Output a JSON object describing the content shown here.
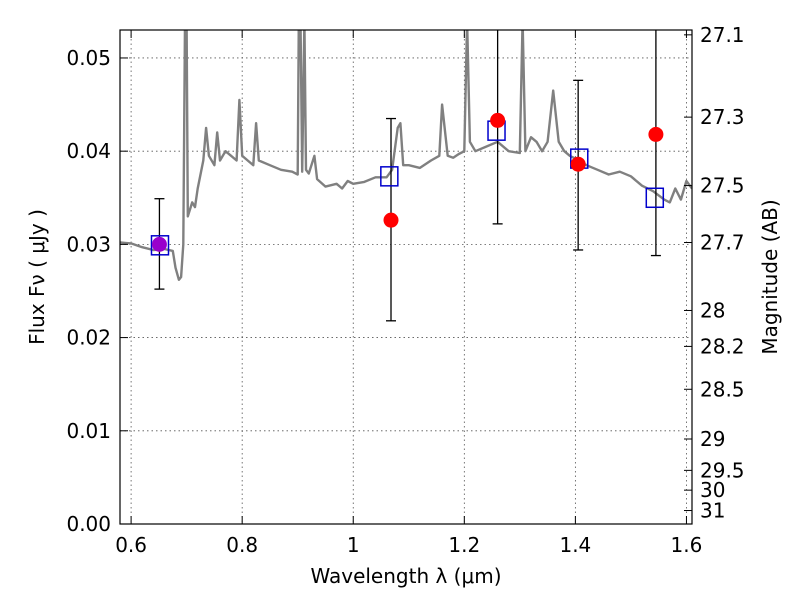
{
  "chart_data": {
    "type": "scatter",
    "xlabel": "Wavelength  λ (μm)",
    "ylabel": "Flux  Fν  ( μJy )",
    "ylabel_right": "Magnitude (AB)",
    "xlim": [
      0.58,
      1.61
    ],
    "ylim": [
      0.0,
      0.053
    ],
    "grid": true,
    "x_ticks": [
      {
        "value": 0.6,
        "label": "0.6"
      },
      {
        "value": 0.8,
        "label": "0.8"
      },
      {
        "value": 1.0,
        "label": "1"
      },
      {
        "value": 1.2,
        "label": "1.2"
      },
      {
        "value": 1.4,
        "label": "1.4"
      },
      {
        "value": 1.6,
        "label": "1.6"
      }
    ],
    "y_ticks": [
      {
        "value": 0.0,
        "label": "0.00"
      },
      {
        "value": 0.01,
        "label": "0.01"
      },
      {
        "value": 0.02,
        "label": "0.02"
      },
      {
        "value": 0.03,
        "label": "0.03"
      },
      {
        "value": 0.04,
        "label": "0.04"
      },
      {
        "value": 0.05,
        "label": "0.05"
      }
    ],
    "mag_ticks": [
      {
        "value": 27.1,
        "label": "27.1"
      },
      {
        "value": 27.3,
        "label": "27.3"
      },
      {
        "value": 27.5,
        "label": "27.5"
      },
      {
        "value": 27.7,
        "label": "27.7"
      },
      {
        "value": 28.0,
        "label": "28"
      },
      {
        "value": 28.2,
        "label": "28.2"
      },
      {
        "value": 28.5,
        "label": "28.5"
      },
      {
        "value": 29.0,
        "label": "29"
      },
      {
        "value": 29.5,
        "label": "29.5"
      },
      {
        "value": 30.0,
        "label": "30"
      },
      {
        "value": 31.0,
        "label": "31"
      }
    ],
    "observed": [
      {
        "x": 1.068,
        "y": 0.0326,
        "yerr_low": 0.0218,
        "yerr_high": 0.0435
      },
      {
        "x": 1.26,
        "y": 0.0433,
        "yerr_low": 0.0322,
        "yerr_high": 0.0535
      },
      {
        "x": 1.405,
        "y": 0.0386,
        "yerr_low": 0.0294,
        "yerr_high": 0.0476
      },
      {
        "x": 1.545,
        "y": 0.0418,
        "yerr_low": 0.0288,
        "yerr_high": 0.0535
      }
    ],
    "detection": [
      {
        "x": 0.651,
        "y": 0.03,
        "yerr_low": 0.0252,
        "yerr_high": 0.0349
      }
    ],
    "model_bands": [
      {
        "x": 0.652,
        "y": 0.0299
      },
      {
        "x": 1.065,
        "y": 0.0373
      },
      {
        "x": 1.258,
        "y": 0.0422
      },
      {
        "x": 1.407,
        "y": 0.0392
      },
      {
        "x": 1.543,
        "y": 0.035
      }
    ],
    "model_spectrum": [
      [
        0.58,
        0.0302
      ],
      [
        0.6,
        0.0301
      ],
      [
        0.62,
        0.0297
      ],
      [
        0.64,
        0.0294
      ],
      [
        0.66,
        0.0295
      ],
      [
        0.675,
        0.0293
      ],
      [
        0.68,
        0.0275
      ],
      [
        0.686,
        0.0262
      ],
      [
        0.69,
        0.0265
      ],
      [
        0.694,
        0.03
      ],
      [
        0.697,
        0.054
      ],
      [
        0.7,
        0.054
      ],
      [
        0.702,
        0.033
      ],
      [
        0.71,
        0.0345
      ],
      [
        0.715,
        0.034
      ],
      [
        0.72,
        0.036
      ],
      [
        0.73,
        0.039
      ],
      [
        0.735,
        0.0425
      ],
      [
        0.74,
        0.0395
      ],
      [
        0.75,
        0.0385
      ],
      [
        0.755,
        0.042
      ],
      [
        0.76,
        0.039
      ],
      [
        0.77,
        0.04
      ],
      [
        0.78,
        0.0395
      ],
      [
        0.79,
        0.039
      ],
      [
        0.795,
        0.0455
      ],
      [
        0.8,
        0.0395
      ],
      [
        0.81,
        0.039
      ],
      [
        0.82,
        0.0385
      ],
      [
        0.825,
        0.043
      ],
      [
        0.83,
        0.039
      ],
      [
        0.85,
        0.0385
      ],
      [
        0.87,
        0.038
      ],
      [
        0.89,
        0.0378
      ],
      [
        0.9,
        0.0375
      ],
      [
        0.902,
        0.054
      ],
      [
        0.905,
        0.054
      ],
      [
        0.908,
        0.0378
      ],
      [
        0.912,
        0.054
      ],
      [
        0.915,
        0.038
      ],
      [
        0.92,
        0.0376
      ],
      [
        0.93,
        0.0395
      ],
      [
        0.935,
        0.037
      ],
      [
        0.95,
        0.0362
      ],
      [
        0.97,
        0.0365
      ],
      [
        0.98,
        0.036
      ],
      [
        0.99,
        0.0368
      ],
      [
        1.0,
        0.0365
      ],
      [
        1.02,
        0.0367
      ],
      [
        1.04,
        0.0372
      ],
      [
        1.06,
        0.0372
      ],
      [
        1.07,
        0.038
      ],
      [
        1.08,
        0.0425
      ],
      [
        1.085,
        0.043
      ],
      [
        1.09,
        0.0385
      ],
      [
        1.1,
        0.0385
      ],
      [
        1.12,
        0.0382
      ],
      [
        1.14,
        0.039
      ],
      [
        1.155,
        0.0395
      ],
      [
        1.16,
        0.045
      ],
      [
        1.17,
        0.0395
      ],
      [
        1.18,
        0.0393
      ],
      [
        1.19,
        0.0397
      ],
      [
        1.2,
        0.04
      ],
      [
        1.205,
        0.054
      ],
      [
        1.21,
        0.041
      ],
      [
        1.22,
        0.04
      ],
      [
        1.24,
        0.0405
      ],
      [
        1.26,
        0.041
      ],
      [
        1.28,
        0.04
      ],
      [
        1.3,
        0.0398
      ],
      [
        1.305,
        0.054
      ],
      [
        1.31,
        0.04
      ],
      [
        1.32,
        0.0415
      ],
      [
        1.33,
        0.041
      ],
      [
        1.34,
        0.04
      ],
      [
        1.35,
        0.041
      ],
      [
        1.36,
        0.0465
      ],
      [
        1.37,
        0.041
      ],
      [
        1.38,
        0.04
      ],
      [
        1.39,
        0.0395
      ],
      [
        1.4,
        0.0392
      ],
      [
        1.42,
        0.0385
      ],
      [
        1.44,
        0.038
      ],
      [
        1.46,
        0.0375
      ],
      [
        1.48,
        0.0378
      ],
      [
        1.5,
        0.0373
      ],
      [
        1.52,
        0.0363
      ],
      [
        1.54,
        0.0357
      ],
      [
        1.56,
        0.0348
      ],
      [
        1.57,
        0.0345
      ],
      [
        1.58,
        0.036
      ],
      [
        1.59,
        0.0348
      ],
      [
        1.6,
        0.0368
      ],
      [
        1.61,
        0.036
      ]
    ],
    "colors": {
      "model": "#808080",
      "observed": "#ff0000",
      "detection": "#9900cc",
      "band_box": "#0000cc",
      "errorbar": "#000000",
      "grid": "#555555"
    }
  }
}
